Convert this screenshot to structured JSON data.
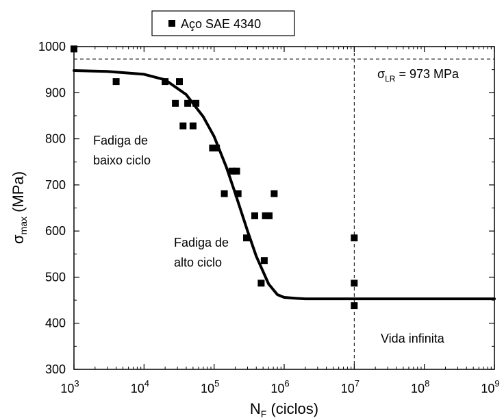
{
  "chart_data": {
    "type": "scatter",
    "x_scale": "log",
    "xlim": [
      1000,
      1000000000
    ],
    "ylim": [
      300,
      1000
    ],
    "x_ticks": [
      {
        "base": "10",
        "exp": "3"
      },
      {
        "base": "10",
        "exp": "4"
      },
      {
        "base": "10",
        "exp": "5"
      },
      {
        "base": "10",
        "exp": "6"
      },
      {
        "base": "10",
        "exp": "7"
      },
      {
        "base": "10",
        "exp": "8"
      },
      {
        "base": "10",
        "exp": "9"
      }
    ],
    "y_ticks": [
      "300",
      "400",
      "500",
      "600",
      "700",
      "800",
      "900",
      "1000"
    ],
    "y_tick_values": [
      300,
      400,
      500,
      600,
      700,
      800,
      900,
      1000
    ],
    "xlabel": {
      "main": "N",
      "sub": "F",
      "rest": " (ciclos)"
    },
    "ylabel": {
      "main": "σ",
      "sub": "max",
      "rest": " (MPa)"
    },
    "legend": {
      "label": "Aço SAE 4340",
      "position": "top-left"
    },
    "series": [
      {
        "name": "Aço SAE 4340",
        "marker": "square",
        "color": "#000000",
        "points": [
          [
            1000,
            995
          ],
          [
            4000,
            924
          ],
          [
            20000,
            924
          ],
          [
            32000,
            924
          ],
          [
            28000,
            877
          ],
          [
            42000,
            877
          ],
          [
            55000,
            877
          ],
          [
            36000,
            828
          ],
          [
            50000,
            828
          ],
          [
            95000,
            780
          ],
          [
            108000,
            780
          ],
          [
            180000,
            730
          ],
          [
            210000,
            730
          ],
          [
            140000,
            681
          ],
          [
            220000,
            681
          ],
          [
            720000,
            681
          ],
          [
            380000,
            633
          ],
          [
            540000,
            633
          ],
          [
            610000,
            633
          ],
          [
            290000,
            585
          ],
          [
            10000000,
            585
          ],
          [
            520000,
            536
          ],
          [
            470000,
            487
          ],
          [
            10000000,
            487
          ],
          [
            10000000,
            438
          ]
        ]
      }
    ],
    "fit_curve": {
      "x": [
        1000,
        3000,
        10000,
        20000,
        40000,
        70000,
        100000,
        150000,
        200000,
        300000,
        400000,
        600000,
        800000,
        1000000,
        1500000,
        2000000,
        3000000,
        10000000,
        1000000000
      ],
      "y": [
        948,
        946,
        940,
        928,
        896,
        848,
        805,
        738,
        682,
        600,
        545,
        485,
        462,
        456,
        454,
        453,
        453,
        453,
        453
      ]
    },
    "reference_lines": {
      "horizontal_y": 973,
      "vertical_x": 10000000
    },
    "annotations": {
      "sigma_lr": {
        "symbol": "σ",
        "sub": "LR",
        "rest": " = 973 MPa"
      },
      "low_cycle": [
        "Fadiga de",
        "baixo ciclo"
      ],
      "high_cycle": [
        "Fadiga de",
        "alto ciclo"
      ],
      "infinite_life": "Vida infinita"
    }
  }
}
